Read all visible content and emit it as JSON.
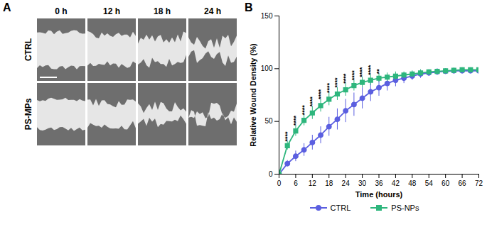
{
  "chart_data": {
    "type": "line",
    "panel_label": "B",
    "xlabel": "Time (hours)",
    "ylabel": "Relative Wound Density (%)",
    "x": [
      0,
      3,
      6,
      9,
      12,
      15,
      18,
      21,
      24,
      27,
      30,
      33,
      36,
      39,
      42,
      45,
      48,
      51,
      54,
      57,
      60,
      63,
      66,
      69,
      72
    ],
    "series": [
      {
        "name": "CTRL",
        "color": "#5b5fe0",
        "marker": "circle",
        "values": [
          0,
          10,
          17,
          23,
          30,
          37,
          45,
          52,
          60,
          66,
          72,
          78,
          82,
          86,
          89,
          91,
          93,
          95,
          96,
          97,
          97.5,
          98,
          98,
          98,
          98
        ],
        "errors": [
          0,
          3,
          5,
          6,
          7,
          8,
          9,
          10,
          11,
          11,
          10,
          9,
          8,
          7,
          6,
          5,
          4,
          4,
          3,
          3,
          2,
          2,
          2,
          2,
          2
        ]
      },
      {
        "name": "PS-NPs",
        "color": "#2eb67d",
        "marker": "square",
        "values": [
          0,
          27,
          41,
          51,
          58,
          65,
          71,
          76,
          80,
          84,
          87,
          89,
          91,
          92,
          93,
          94,
          95,
          96,
          97,
          97.5,
          98,
          98.5,
          99,
          99,
          99
        ],
        "errors": [
          0,
          4,
          5,
          5,
          6,
          6,
          6,
          6,
          6,
          5,
          5,
          5,
          4,
          4,
          4,
          3,
          3,
          3,
          2,
          2,
          2,
          2,
          2,
          2,
          2
        ]
      }
    ],
    "annotations": [
      {
        "x": 3,
        "text": "****"
      },
      {
        "x": 6,
        "text": "****"
      },
      {
        "x": 9,
        "text": "****"
      },
      {
        "x": 12,
        "text": "****"
      },
      {
        "x": 15,
        "text": "****"
      },
      {
        "x": 18,
        "text": "****"
      },
      {
        "x": 21,
        "text": "****"
      },
      {
        "x": 24,
        "text": "****"
      },
      {
        "x": 27,
        "text": "****"
      },
      {
        "x": 30,
        "text": "****"
      },
      {
        "x": 33,
        "text": "****"
      },
      {
        "x": 36,
        "text": "**"
      }
    ],
    "xlim": [
      0,
      72
    ],
    "xticks": [
      0,
      6,
      12,
      18,
      24,
      30,
      36,
      42,
      48,
      54,
      60,
      66,
      72
    ],
    "ylim": [
      0,
      150
    ],
    "yticks": [
      0,
      50,
      100,
      150
    ],
    "grid": false
  },
  "panel_a": {
    "panel_label": "A",
    "columns": [
      "0 h",
      "12 h",
      "18 h",
      "24 h"
    ],
    "rows": [
      "CTRL",
      "PS-MPs"
    ]
  }
}
